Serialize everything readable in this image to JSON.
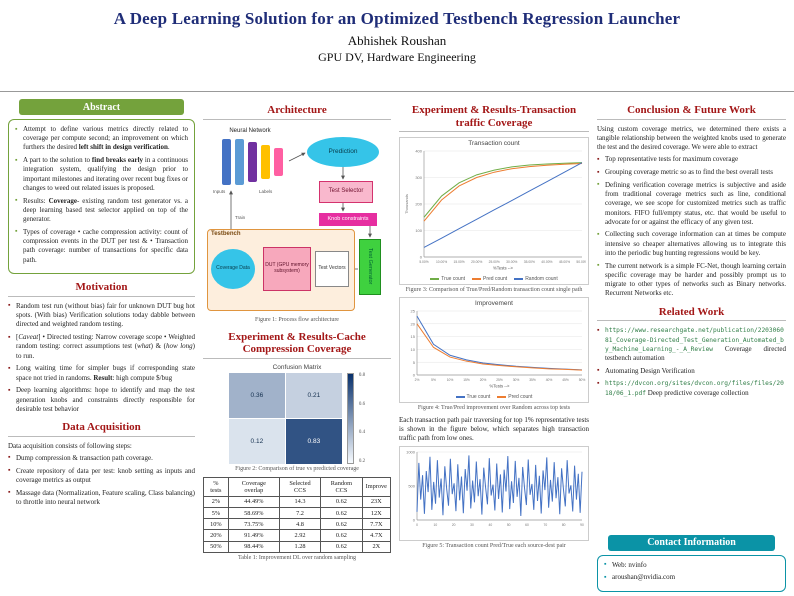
{
  "colors": {
    "title_navy": "#1f2d78",
    "section_red": "#a31717",
    "abstract_green": "#74a23c",
    "contact_teal": "#0b93a6"
  },
  "header": {
    "title": "A Deep Learning Solution for an Optimized Testbench Regression Launcher",
    "author": "Abhishek Roushan",
    "affiliation": "GPU DV, Hardware Engineering"
  },
  "sections": {
    "abstract": {
      "title": "Abstract",
      "items": [
        "Attempt to define various metrics directly related to coverage per compute second; an improvement on which furthers the desired <b>left shift in design verification</b>.",
        "A part to the solution to <b>find breaks early</b> in a continuous integration system, qualifying the design prior to important milestones and iterating over recent bug fixes or changes to weed out related issues is proposed.",
        "Results: <b>Coverage</b>- existing random test generator vs. a deep learning based test selector applied on top of the generator.",
        "Types of coverage &bull; cache compression activity: count of compression events in the DUT per test &amp; &bull; Transaction path coverage: number of transactions for specific data path."
      ]
    },
    "motivation": {
      "title": "Motivation",
      "items": [
        "Random test run (without bias) fair for unknown DUT bug hot spots. (With bias) Verification solutions today dabble between directed and weighted random testing.",
        "[<i>Caveat</i>] &bull; Directed testing: Narrow coverage scope &bull; Weighted random testing: correct assumptions test (<i>what</i>) &amp; (<i>how long</i>) to run.",
        "Long waiting time for simpler bugs if corresponding state space not tried in randoms. <b>Result</b>: high compute $/bug",
        "Deep learning algorithms: hope to identify and map the test generation knobs and constraints directly responsible for desirable test behavior"
      ]
    },
    "data_acquisition": {
      "title": "Data Acquisition",
      "intro": "Data acquisition consists of following steps:",
      "items": [
        "Dump compression &amp; transaction path coverage.",
        "Create repository of data per test: knob setting as inputs and coverage metrics as output",
        "Massage data (Normalization, Feature scaling, Class balancing) to throttle into neural network"
      ]
    },
    "architecture": {
      "title": "Architecture",
      "caption": "Figure 1: Process flow architecture",
      "nodes": {
        "neural_network": "Neural Network",
        "inputs": "Inputs",
        "labels": "Labels",
        "train": "Train",
        "prediction": "Prediction",
        "test_selector": "Test Selector",
        "knob_constraints": "Knob constraints",
        "test_generator": "Test Generator",
        "testbench": "Testbench",
        "dut": "DUT (GPU memory subsystem)",
        "test_vectors": "Test Vectors",
        "coverage_data": "Coverage Data"
      }
    },
    "cache_results": {
      "title": "Experiment & Results-Cache Compression Coverage",
      "fig2_caption": "Figure 2: Comparison of true vs predicted coverage",
      "table_caption": "Table 1: Improvement DL over random sampling"
    },
    "transaction_results": {
      "title": "Experiment & Results-Transaction traffic Coverage",
      "fig3_caption": "Figure 3: Comparison of True/Pred/Random transaction count single path",
      "fig4_caption": "Figure 4: True/Pred improvement over Random across top tests",
      "paragraph": "Each transaction path pair traversing for top 1% representative tests is shown in the figure below, which separates high transaction traffic path from low ones.",
      "fig5_caption": "Figure 5: Transaction count Pred/True each source-dest pair"
    },
    "conclusion": {
      "title": "Conclusion & Future Work",
      "intro": "Using custom coverage metrics, we determined there exists a tangible relationship between the weighted knobs used to generate the test and the desired coverage. We were able to extract",
      "items": [
        "Top representative tests for maximum coverage",
        "Grouping coverage metric so as to find the best overall tests",
        "Defining verification coverage metrics is subjective and aside from traditional coverage metrics such as line, conditional coverage, we see scope for customized metrics such as traffic monitors. FIFO full/empty status, etc. that would be useful to advocate for or against the efficacy of any given test.",
        "Collecting such coverage information can at times be compute intensive so cheaper alternatives allowing us to integrate this into the periodic bug hunting regressions would be key.",
        "The current network is a simple FC-Net, though learning certain specific coverage may be harder and possibly prompt us to migrate to other types of networks such as Binary networks. Recurrent Networks etc."
      ]
    },
    "related": {
      "title": "Related Work",
      "items": [
        {
          "url": "https://www.researchgate.net/publication/220306081_Coverage-Directed_Test_Generation_Automated_by_Machine_Learning_-_A_Review",
          "text": "Coverage directed testbench automation"
        },
        {
          "url": "",
          "text": "Automating Design Verification"
        },
        {
          "url": "https://dvcon.org/sites/dvcon.org/files/files/2018/06_1.pdf",
          "text": "Deep predictive coverage collection"
        }
      ]
    },
    "contact": {
      "title": "Contact Information",
      "items": [
        "Web: nvinfo",
        "aroushan@nvidia.com"
      ]
    }
  },
  "chart_data": [
    {
      "id": "fig2",
      "type": "heatmap",
      "title": "Confusion Matrix",
      "xticklabels": [
        "0",
        "1"
      ],
      "yticklabels": [
        "0",
        "1"
      ],
      "values": [
        [
          0.36,
          0.21
        ],
        [
          0.12,
          0.83
        ]
      ],
      "colorbar_ticks": [
        "0.8",
        "0.6",
        "0.4",
        "0.2"
      ]
    },
    {
      "id": "fig3",
      "type": "line",
      "title": "Transaction count",
      "ylabel": "Thousands",
      "xlabel": "%Tests -->",
      "ylim": [
        0,
        400
      ],
      "yticks": [
        0,
        100,
        200,
        300,
        400
      ],
      "x_labels": [
        "5.00%",
        "10.00%",
        "15.00%",
        "20.00%",
        "25.00%",
        "30.00%",
        "35.00%",
        "40.00%",
        "45.00%",
        "50.00%"
      ],
      "series": [
        {
          "name": "True count",
          "color": "#70ad47",
          "values": [
            150,
            230,
            280,
            310,
            328,
            340,
            347,
            351,
            354,
            356
          ]
        },
        {
          "name": "Pred count",
          "color": "#ed7d31",
          "values": [
            135,
            215,
            268,
            300,
            320,
            333,
            341,
            346,
            350,
            353
          ]
        },
        {
          "name": "Random count",
          "color": "#4472c4",
          "values": [
            36,
            71,
            107,
            142,
            178,
            213,
            249,
            284,
            320,
            356
          ]
        }
      ]
    },
    {
      "id": "fig4",
      "type": "line",
      "title": "Improvement",
      "xlabel": "%Tests -->",
      "ylim": [
        0,
        25
      ],
      "yticks": [
        0,
        5,
        10,
        15,
        20,
        25
      ],
      "x_labels": [
        "2%",
        "5%",
        "10%",
        "15%",
        "20%",
        "25%",
        "30%",
        "35%",
        "40%",
        "45%",
        "50%"
      ],
      "series": [
        {
          "name": "True count",
          "color": "#4472c4",
          "values": [
            23,
            12,
            7.7,
            5.9,
            4.7,
            4.0,
            3.4,
            3.0,
            2.6,
            2.3,
            2.0
          ]
        },
        {
          "name": "Pred count",
          "color": "#ed7d31",
          "values": [
            20,
            10.8,
            7.0,
            5.4,
            4.3,
            3.7,
            3.2,
            2.8,
            2.4,
            2.2,
            1.9
          ]
        }
      ]
    },
    {
      "id": "fig5",
      "type": "line",
      "title": "",
      "legend": false,
      "ylim": [
        0,
        1000
      ],
      "yticks": [
        0,
        500,
        1000
      ],
      "x_labels": [
        "0",
        "10",
        "20",
        "30",
        "40",
        "50",
        "60",
        "70",
        "80",
        "90"
      ],
      "series": [
        {
          "name": "Transactions",
          "color": "#4472c4",
          "values": [
            120,
            840,
            300,
            660,
            90,
            720,
            410,
            930,
            150,
            560,
            240,
            880,
            330,
            610,
            70,
            790,
            460,
            210,
            900,
            380,
            540,
            130,
            820,
            290,
            640,
            100,
            750,
            430,
            950,
            170,
            580,
            260,
            860,
            350,
            600,
            80,
            770,
            480,
            230,
            910,
            360,
            520,
            140,
            830,
            310,
            670,
            110,
            740,
            420,
            940,
            160,
            570,
            250,
            870,
            340,
            620,
            60,
            780,
            470,
            220,
            890,
            370,
            530,
            150,
            810,
            280,
            650,
            95,
            730,
            440,
            920,
            180,
            590,
            270,
            850,
            320,
            630,
            85,
            760,
            450,
            200,
            880,
            390,
            510,
            125,
            800,
            300,
            680,
            105,
            710
          ]
        }
      ]
    },
    {
      "id": "table1",
      "type": "table",
      "headers": [
        "% tests",
        "Coverage overlap",
        "Selected CCS",
        "Random CCS",
        "Improve"
      ],
      "rows": [
        [
          "2%",
          "44.49%",
          "14.3",
          "0.62",
          "23X"
        ],
        [
          "5%",
          "58.69%",
          "7.2",
          "0.62",
          "12X"
        ],
        [
          "10%",
          "73.75%",
          "4.8",
          "0.62",
          "7.7X"
        ],
        [
          "20%",
          "91.49%",
          "2.92",
          "0.62",
          "4.7X"
        ],
        [
          "50%",
          "98.44%",
          "1.28",
          "0.62",
          "2X"
        ]
      ]
    }
  ]
}
